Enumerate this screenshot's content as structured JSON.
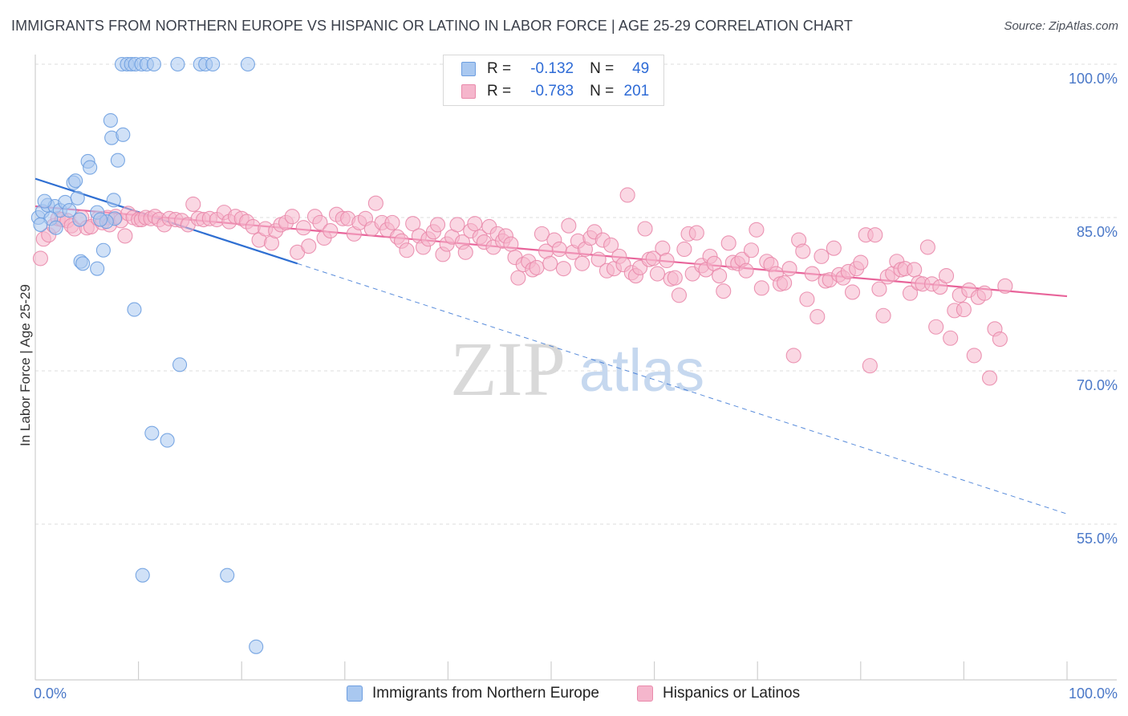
{
  "title": "IMMIGRANTS FROM NORTHERN EUROPE VS HISPANIC OR LATINO IN LABOR FORCE | AGE 25-29 CORRELATION CHART",
  "source": "Source: ZipAtlas.com",
  "watermark": {
    "zip": "ZIP",
    "atlas": "atlas"
  },
  "legend": {
    "r_label": "R =",
    "n_label": "N =",
    "series1": {
      "r": "-0.132",
      "n": "49"
    },
    "series2": {
      "r": "-0.783",
      "n": "201"
    }
  },
  "colors": {
    "blue_fill": "#a9c8f0",
    "blue_stroke": "#6d9ee0",
    "blue_line": "#2f6fd2",
    "pink_fill": "#f5b6cc",
    "pink_stroke": "#e98aab",
    "pink_line": "#e8649a",
    "axis_label": "#4a78c8"
  },
  "chart_data": {
    "type": "scatter",
    "title": "IMMIGRANTS FROM NORTHERN EUROPE VS HISPANIC OR LATINO IN LABOR FORCE | AGE 25-29 CORRELATION CHART",
    "xlabel": "",
    "ylabel": "In Labor Force | Age 25-29",
    "xlim": [
      0,
      100
    ],
    "ylim": [
      40,
      101.5
    ],
    "x_tick_labels": [
      "0.0%",
      "100.0%"
    ],
    "y_tick_labels": [
      "100.0%",
      "85.0%",
      "70.0%",
      "55.0%"
    ],
    "y_ticks": [
      100,
      85,
      70,
      55
    ],
    "grid": true,
    "legend_position": "top-center",
    "series": [
      {
        "name": "Immigrants from Northern Europe",
        "r": -0.132,
        "n": 49,
        "trend": {
          "x": [
            0,
            25.4
          ],
          "y": [
            88.8,
            80.5
          ],
          "dashed_to": [
            100,
            56.0
          ]
        },
        "points": [
          [
            0.3,
            85.0
          ],
          [
            0.7,
            85.6
          ],
          [
            1.2,
            86.2
          ],
          [
            1.9,
            86.1
          ],
          [
            2.4,
            85.7
          ],
          [
            2.9,
            86.5
          ],
          [
            3.3,
            85.7
          ],
          [
            4.3,
            84.8
          ],
          [
            6.0,
            85.5
          ],
          [
            7.7,
            84.9
          ],
          [
            0.9,
            86.6
          ],
          [
            1.5,
            84.9
          ],
          [
            3.7,
            88.4
          ],
          [
            3.9,
            88.6
          ],
          [
            4.1,
            86.9
          ],
          [
            5.1,
            90.5
          ],
          [
            5.3,
            89.9
          ],
          [
            7.6,
            86.7
          ],
          [
            8.0,
            90.6
          ],
          [
            7.4,
            92.8
          ],
          [
            7.3,
            94.5
          ],
          [
            8.5,
            93.1
          ],
          [
            4.4,
            80.7
          ],
          [
            4.6,
            80.5
          ],
          [
            6.0,
            80.0
          ],
          [
            6.6,
            81.8
          ],
          [
            6.9,
            84.6
          ],
          [
            9.6,
            76.0
          ],
          [
            14.0,
            70.6
          ],
          [
            11.3,
            63.9
          ],
          [
            12.8,
            63.2
          ],
          [
            10.4,
            50.0
          ],
          [
            18.6,
            50.0
          ],
          [
            21.4,
            43.0
          ],
          [
            8.4,
            100.0
          ],
          [
            8.9,
            100.0
          ],
          [
            9.3,
            100.0
          ],
          [
            9.7,
            100.0
          ],
          [
            10.3,
            100.0
          ],
          [
            10.8,
            100.0
          ],
          [
            11.5,
            100.0
          ],
          [
            13.8,
            100.0
          ],
          [
            16.0,
            100.0
          ],
          [
            16.5,
            100.0
          ],
          [
            17.2,
            100.0
          ],
          [
            20.6,
            100.0
          ],
          [
            0.5,
            84.3
          ],
          [
            2.0,
            84.0
          ],
          [
            6.3,
            84.8
          ]
        ]
      },
      {
        "name": "Hispanics or Latinos",
        "r": -0.783,
        "n": 201,
        "trend": {
          "x": [
            0,
            100
          ],
          "y": [
            86.1,
            77.3
          ]
        },
        "points": [
          [
            0.5,
            81.0
          ],
          [
            0.8,
            82.9
          ],
          [
            1.3,
            83.3
          ],
          [
            1.8,
            84.2
          ],
          [
            2.2,
            84.9
          ],
          [
            2.6,
            84.8
          ],
          [
            3.1,
            84.7
          ],
          [
            3.5,
            84.2
          ],
          [
            3.8,
            83.9
          ],
          [
            4.5,
            85.0
          ],
          [
            5.0,
            84.0
          ],
          [
            5.4,
            84.1
          ],
          [
            6.1,
            84.9
          ],
          [
            6.5,
            84.5
          ],
          [
            7.0,
            85.0
          ],
          [
            7.2,
            84.3
          ],
          [
            7.8,
            85.1
          ],
          [
            8.3,
            84.7
          ],
          [
            8.7,
            83.2
          ],
          [
            9.0,
            85.4
          ],
          [
            9.5,
            85.0
          ],
          [
            10.0,
            84.8
          ],
          [
            10.3,
            84.8
          ],
          [
            10.7,
            85.0
          ],
          [
            11.2,
            84.9
          ],
          [
            11.6,
            85.1
          ],
          [
            12.0,
            84.8
          ],
          [
            12.5,
            84.3
          ],
          [
            13.0,
            84.9
          ],
          [
            13.6,
            84.8
          ],
          [
            14.2,
            84.7
          ],
          [
            14.8,
            84.3
          ],
          [
            15.3,
            86.3
          ],
          [
            15.8,
            84.9
          ],
          [
            16.3,
            84.8
          ],
          [
            16.9,
            84.9
          ],
          [
            17.6,
            84.8
          ],
          [
            18.3,
            85.5
          ],
          [
            18.8,
            84.6
          ],
          [
            19.4,
            85.1
          ],
          [
            20.0,
            84.9
          ],
          [
            20.5,
            84.6
          ],
          [
            21.1,
            84.1
          ],
          [
            21.7,
            82.8
          ],
          [
            22.3,
            83.9
          ],
          [
            22.9,
            82.5
          ],
          [
            23.3,
            83.7
          ],
          [
            23.8,
            84.3
          ],
          [
            24.3,
            84.5
          ],
          [
            24.9,
            85.1
          ],
          [
            25.4,
            81.6
          ],
          [
            26.0,
            84.0
          ],
          [
            26.5,
            82.2
          ],
          [
            27.1,
            85.1
          ],
          [
            27.6,
            84.5
          ],
          [
            28.0,
            83.0
          ],
          [
            28.6,
            83.7
          ],
          [
            29.2,
            85.3
          ],
          [
            29.8,
            84.9
          ],
          [
            30.3,
            84.9
          ],
          [
            30.9,
            83.4
          ],
          [
            31.4,
            84.5
          ],
          [
            32.0,
            84.9
          ],
          [
            32.6,
            83.9
          ],
          [
            33.0,
            86.4
          ],
          [
            33.6,
            84.5
          ],
          [
            34.1,
            83.8
          ],
          [
            34.6,
            84.5
          ],
          [
            35.1,
            83.1
          ],
          [
            35.5,
            82.7
          ],
          [
            36.0,
            81.8
          ],
          [
            36.6,
            84.4
          ],
          [
            37.2,
            83.2
          ],
          [
            37.6,
            82.1
          ],
          [
            38.1,
            82.9
          ],
          [
            38.6,
            83.6
          ],
          [
            39.0,
            84.3
          ],
          [
            39.5,
            81.4
          ],
          [
            39.9,
            82.4
          ],
          [
            40.4,
            83.1
          ],
          [
            40.9,
            84.3
          ],
          [
            41.4,
            82.6
          ],
          [
            41.7,
            81.6
          ],
          [
            42.2,
            83.7
          ],
          [
            42.6,
            84.4
          ],
          [
            43.1,
            83.1
          ],
          [
            43.5,
            82.6
          ],
          [
            44.0,
            84.1
          ],
          [
            44.4,
            82.1
          ],
          [
            44.8,
            83.4
          ],
          [
            45.3,
            82.7
          ],
          [
            45.6,
            83.2
          ],
          [
            46.1,
            82.4
          ],
          [
            46.5,
            81.1
          ],
          [
            46.8,
            79.1
          ],
          [
            47.3,
            80.4
          ],
          [
            47.8,
            80.7
          ],
          [
            48.2,
            79.9
          ],
          [
            48.6,
            80.1
          ],
          [
            49.1,
            83.4
          ],
          [
            49.5,
            81.7
          ],
          [
            49.9,
            80.5
          ],
          [
            50.3,
            82.8
          ],
          [
            50.8,
            81.9
          ],
          [
            51.2,
            80.0
          ],
          [
            51.7,
            84.2
          ],
          [
            52.1,
            81.6
          ],
          [
            52.6,
            82.7
          ],
          [
            53.0,
            80.5
          ],
          [
            53.3,
            81.9
          ],
          [
            53.8,
            83.0
          ],
          [
            54.2,
            83.6
          ],
          [
            54.6,
            80.9
          ],
          [
            55.0,
            82.8
          ],
          [
            55.4,
            79.8
          ],
          [
            55.8,
            82.3
          ],
          [
            56.1,
            80.0
          ],
          [
            56.6,
            81.2
          ],
          [
            57.0,
            80.4
          ],
          [
            57.4,
            87.2
          ],
          [
            57.8,
            79.6
          ],
          [
            58.2,
            79.3
          ],
          [
            58.6,
            80.1
          ],
          [
            59.1,
            83.9
          ],
          [
            59.5,
            80.9
          ],
          [
            59.9,
            81.0
          ],
          [
            60.3,
            79.5
          ],
          [
            60.8,
            82.0
          ],
          [
            61.2,
            80.8
          ],
          [
            61.6,
            79.0
          ],
          [
            62.0,
            79.1
          ],
          [
            62.4,
            77.4
          ],
          [
            62.9,
            81.9
          ],
          [
            63.3,
            83.4
          ],
          [
            63.7,
            79.5
          ],
          [
            64.1,
            83.5
          ],
          [
            64.6,
            80.3
          ],
          [
            65.0,
            79.9
          ],
          [
            65.4,
            81.2
          ],
          [
            65.8,
            80.5
          ],
          [
            66.3,
            79.3
          ],
          [
            66.7,
            77.8
          ],
          [
            67.2,
            82.5
          ],
          [
            67.6,
            80.6
          ],
          [
            68.1,
            80.5
          ],
          [
            68.5,
            80.9
          ],
          [
            68.9,
            79.8
          ],
          [
            69.4,
            81.8
          ],
          [
            69.9,
            83.8
          ],
          [
            70.4,
            78.1
          ],
          [
            70.9,
            80.7
          ],
          [
            71.3,
            80.4
          ],
          [
            71.8,
            79.5
          ],
          [
            72.2,
            78.5
          ],
          [
            72.6,
            78.6
          ],
          [
            73.1,
            80.0
          ],
          [
            73.5,
            71.5
          ],
          [
            74.0,
            82.8
          ],
          [
            74.4,
            81.7
          ],
          [
            74.8,
            77.0
          ],
          [
            75.3,
            79.5
          ],
          [
            75.8,
            75.3
          ],
          [
            76.2,
            81.2
          ],
          [
            76.6,
            78.8
          ],
          [
            77.0,
            78.9
          ],
          [
            77.4,
            82.0
          ],
          [
            77.9,
            79.4
          ],
          [
            78.3,
            79.1
          ],
          [
            78.8,
            79.7
          ],
          [
            79.2,
            77.7
          ],
          [
            79.6,
            80.0
          ],
          [
            80.0,
            80.6
          ],
          [
            80.5,
            83.3
          ],
          [
            80.9,
            70.5
          ],
          [
            81.4,
            83.3
          ],
          [
            81.8,
            78.0
          ],
          [
            82.2,
            75.4
          ],
          [
            82.6,
            79.2
          ],
          [
            83.1,
            79.5
          ],
          [
            83.5,
            80.7
          ],
          [
            83.9,
            79.9
          ],
          [
            84.3,
            80.0
          ],
          [
            84.8,
            77.6
          ],
          [
            85.2,
            79.9
          ],
          [
            85.6,
            78.6
          ],
          [
            86.0,
            78.5
          ],
          [
            86.5,
            82.1
          ],
          [
            86.9,
            78.5
          ],
          [
            87.3,
            74.3
          ],
          [
            87.7,
            78.2
          ],
          [
            88.3,
            79.3
          ],
          [
            88.7,
            73.2
          ],
          [
            89.1,
            75.9
          ],
          [
            89.6,
            77.4
          ],
          [
            90.0,
            76.0
          ],
          [
            90.5,
            77.9
          ],
          [
            91.0,
            71.5
          ],
          [
            91.4,
            77.2
          ],
          [
            92.0,
            77.6
          ],
          [
            92.5,
            69.3
          ],
          [
            93.0,
            74.1
          ],
          [
            93.5,
            73.1
          ],
          [
            94.0,
            78.3
          ]
        ]
      }
    ]
  }
}
